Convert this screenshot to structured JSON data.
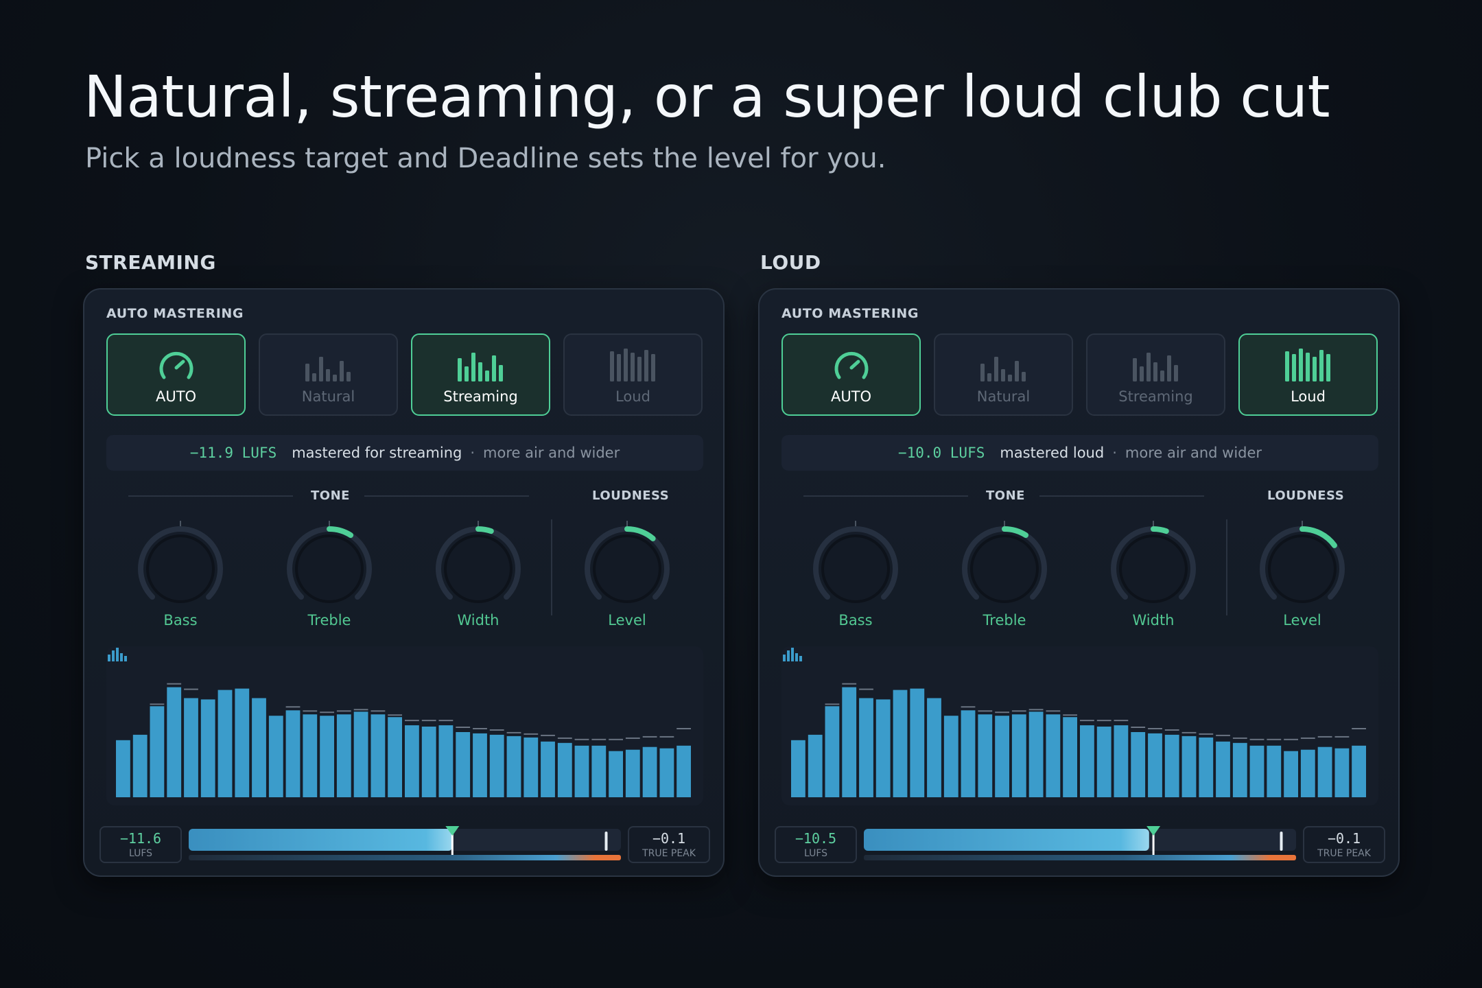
{
  "header": {
    "title": "Natural, streaming, or a super loud club cut",
    "subtitle": "Pick a loudness target and Deadline sets the level for you."
  },
  "colors": {
    "accent_green": "#4fcf97",
    "bar_blue": "#3b9ccb",
    "peak_orange": "#e8743a",
    "panel_bg": "#161e2a"
  },
  "panels": [
    {
      "section_label": "STREAMING",
      "title": "AUTO MASTERING",
      "active_preset": "Streaming",
      "presets": [
        {
          "label": "AUTO",
          "icon": "dial-icon"
        },
        {
          "label": "Natural",
          "icon": "bars-natural-icon"
        },
        {
          "label": "Streaming",
          "icon": "bars-streaming-icon"
        },
        {
          "label": "Loud",
          "icon": "bars-loud-icon"
        }
      ],
      "info": {
        "lufs": "−11.9 LUFS",
        "main": "mastered for streaming",
        "separator": "·",
        "sub": "more air and wider"
      },
      "tone_label": "TONE",
      "loudness_label": "LOUDNESS",
      "knobs": [
        {
          "label": "Bass",
          "value": 0.0
        },
        {
          "label": "Treble",
          "value": 0.12
        },
        {
          "label": "Width",
          "value": 0.07
        },
        {
          "label": "Level",
          "value": 0.15
        }
      ],
      "spectrum": [
        0.42,
        0.46,
        0.67,
        0.81,
        0.73,
        0.72,
        0.79,
        0.8,
        0.73,
        0.6,
        0.64,
        0.61,
        0.6,
        0.61,
        0.63,
        0.61,
        0.59,
        0.53,
        0.52,
        0.53,
        0.48,
        0.47,
        0.46,
        0.45,
        0.44,
        0.41,
        0.4,
        0.38,
        0.38,
        0.34,
        0.35,
        0.37,
        0.36,
        0.38
      ],
      "spectrum_peaks": [
        null,
        null,
        0.68,
        0.83,
        0.79,
        null,
        null,
        null,
        null,
        null,
        0.66,
        0.63,
        0.62,
        0.63,
        0.64,
        0.63,
        0.6,
        0.56,
        0.56,
        0.56,
        0.51,
        0.5,
        0.49,
        0.47,
        0.46,
        0.45,
        0.43,
        0.42,
        0.42,
        0.42,
        0.43,
        0.44,
        0.44,
        0.5
      ],
      "meter": {
        "lufs_value": "−11.6",
        "lufs_unit": "LUFS",
        "peak_value": "−0.1",
        "peak_unit": "TRUE PEAK",
        "fill_fraction": 0.61,
        "target_fraction": 0.61,
        "ceiling_fraction": 0.985
      }
    },
    {
      "section_label": "LOUD",
      "title": "AUTO MASTERING",
      "active_preset": "Loud",
      "presets": [
        {
          "label": "AUTO",
          "icon": "dial-icon"
        },
        {
          "label": "Natural",
          "icon": "bars-natural-icon"
        },
        {
          "label": "Streaming",
          "icon": "bars-streaming-icon"
        },
        {
          "label": "Loud",
          "icon": "bars-loud-icon"
        }
      ],
      "info": {
        "lufs": "−10.0 LUFS",
        "main": "mastered loud",
        "separator": "·",
        "sub": "more air and wider"
      },
      "tone_label": "TONE",
      "loudness_label": "LOUDNESS",
      "knobs": [
        {
          "label": "Bass",
          "value": 0.0
        },
        {
          "label": "Treble",
          "value": 0.12
        },
        {
          "label": "Width",
          "value": 0.07
        },
        {
          "label": "Level",
          "value": 0.2
        }
      ],
      "spectrum": [
        0.42,
        0.46,
        0.67,
        0.81,
        0.73,
        0.72,
        0.79,
        0.8,
        0.73,
        0.6,
        0.64,
        0.61,
        0.6,
        0.61,
        0.63,
        0.61,
        0.59,
        0.53,
        0.52,
        0.53,
        0.48,
        0.47,
        0.46,
        0.45,
        0.44,
        0.41,
        0.4,
        0.38,
        0.38,
        0.34,
        0.35,
        0.37,
        0.36,
        0.38
      ],
      "spectrum_peaks": [
        null,
        null,
        0.68,
        0.83,
        0.79,
        null,
        null,
        null,
        null,
        null,
        0.66,
        0.63,
        0.62,
        0.63,
        0.64,
        0.63,
        0.6,
        0.56,
        0.56,
        0.56,
        0.51,
        0.5,
        0.49,
        0.47,
        0.46,
        0.45,
        0.43,
        0.42,
        0.42,
        0.42,
        0.43,
        0.44,
        0.44,
        0.5
      ],
      "meter": {
        "lufs_value": "−10.5",
        "lufs_unit": "LUFS",
        "peak_value": "−0.1",
        "peak_unit": "TRUE PEAK",
        "fill_fraction": 0.66,
        "target_fraction": 0.67,
        "ceiling_fraction": 0.985
      }
    }
  ]
}
